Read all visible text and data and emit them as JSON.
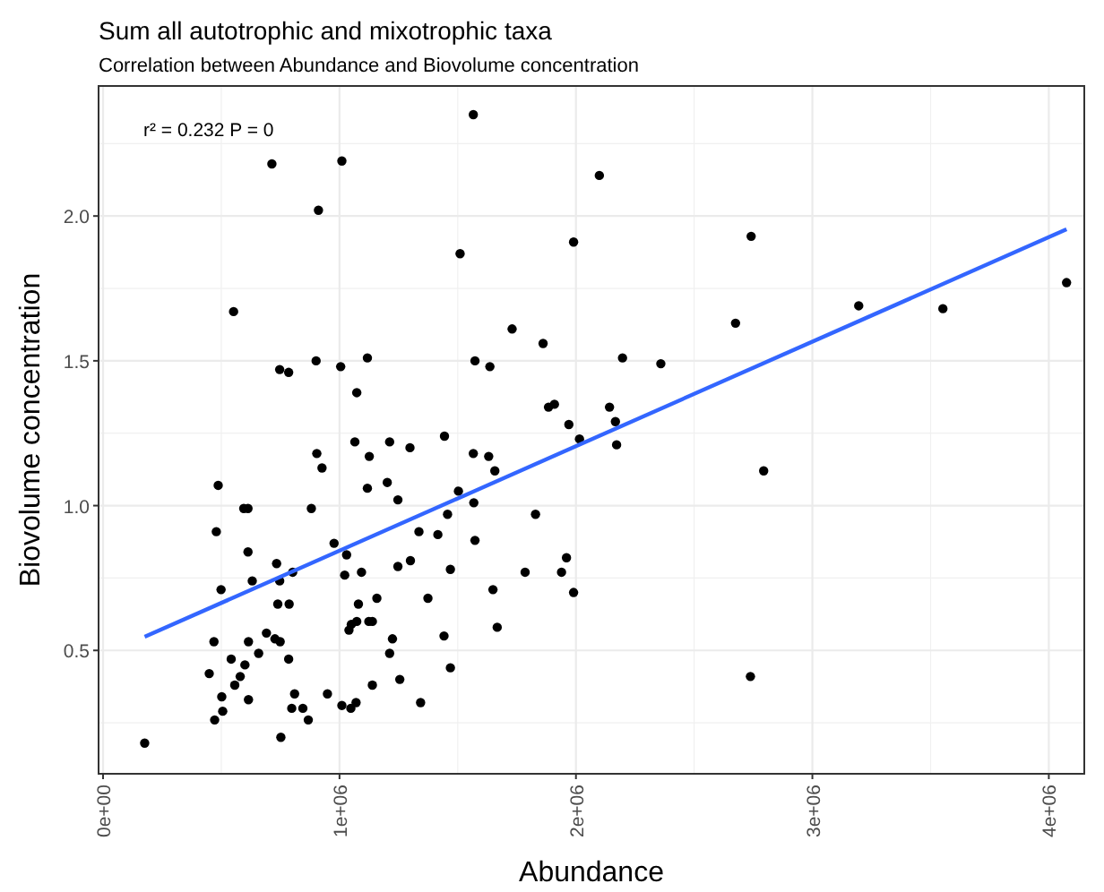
{
  "chart_data": {
    "type": "scatter",
    "title": "Sum all autotrophic and mixotrophic taxa",
    "subtitle": "Correlation between Abundance and Biovolume concentration",
    "xlabel": "Abundance",
    "ylabel": "Biovolume concentration",
    "annotations": [
      "r² = 0.232  P = 0"
    ],
    "xlim": [
      -19000,
      4150000
    ],
    "ylim": [
      0.074,
      2.449
    ],
    "xticks": [
      {
        "value": 0,
        "label": "0e+00"
      },
      {
        "value": 1000000,
        "label": "1e+06"
      },
      {
        "value": 2000000,
        "label": "2e+06"
      },
      {
        "value": 3000000,
        "label": "3e+06"
      },
      {
        "value": 4000000,
        "label": "4e+06"
      }
    ],
    "yticks": [
      0.5,
      {
        "value": 1,
        "label": "1.0"
      },
      1.5,
      {
        "value": 2,
        "label": "2.0"
      }
    ],
    "grid": true,
    "marker": "circle",
    "series": [
      {
        "color": "#000000",
        "x": [
          1566000,
          714000,
          1010000,
          911000,
          1510000,
          1990000,
          552000,
          1730000,
          1861000,
          747000,
          785000,
          901000,
          1005000,
          1118000,
          1573000,
          1636000,
          1073000,
          1884000,
          1909000,
          1970000,
          1065000,
          1212000,
          1298000,
          1444000,
          2015000,
          904000,
          926000,
          1126000,
          1566000,
          1631000,
          1657000,
          487000,
          1118000,
          1202000,
          1247000,
          1503000,
          595000,
          613000,
          881000,
          1568000,
          1457000,
          1829000,
          479000,
          977000,
          1336000,
          1416000,
          1573000,
          613000,
          1030000,
          734000,
          802000,
          1022000,
          1093000,
          1247000,
          1300000,
          1469000,
          1785000,
          1939000,
          1960000,
          1990000,
          631000,
          747000,
          499000,
          739000,
          787000,
          1080000,
          1158000,
          1374000,
          1649000,
          1667000,
          1050000,
          1073000,
          1040000,
          1124000,
          1139000,
          691000,
          727000,
          749000,
          469000,
          615000,
          1224000,
          1442000,
          658000,
          542000,
          785000,
          1212000,
          600000,
          1469000,
          449000,
          580000,
          557000,
          1139000,
          1255000,
          810000,
          949000,
          502000,
          615000,
          1010000,
          1070000,
          1048000,
          1343000,
          506000,
          798000,
          845000,
          472000,
          868000,
          752000,
          176000,
          2099000,
          2741000,
          3196000,
          3552000,
          4075000,
          2675000,
          2197000,
          2359000,
          2142000,
          2167000,
          2172000,
          2794000,
          2738000
        ],
        "values": [
          2.35,
          2.18,
          2.19,
          2.02,
          1.87,
          1.91,
          1.67,
          1.61,
          1.56,
          1.47,
          1.46,
          1.5,
          1.48,
          1.51,
          1.5,
          1.48,
          1.39,
          1.34,
          1.35,
          1.28,
          1.22,
          1.22,
          1.2,
          1.24,
          1.23,
          1.18,
          1.13,
          1.17,
          1.18,
          1.17,
          1.12,
          1.07,
          1.06,
          1.08,
          1.02,
          1.05,
          0.99,
          0.99,
          0.99,
          1.01,
          0.97,
          0.97,
          0.91,
          0.87,
          0.91,
          0.9,
          0.88,
          0.84,
          0.83,
          0.8,
          0.77,
          0.76,
          0.77,
          0.79,
          0.81,
          0.78,
          0.77,
          0.77,
          0.82,
          0.7,
          0.74,
          0.74,
          0.71,
          0.66,
          0.66,
          0.66,
          0.68,
          0.68,
          0.71,
          0.58,
          0.59,
          0.6,
          0.57,
          0.6,
          0.6,
          0.56,
          0.54,
          0.53,
          0.53,
          0.53,
          0.54,
          0.55,
          0.49,
          0.47,
          0.47,
          0.49,
          0.45,
          0.44,
          0.42,
          0.41,
          0.38,
          0.38,
          0.4,
          0.35,
          0.35,
          0.34,
          0.33,
          0.31,
          0.32,
          0.3,
          0.32,
          0.29,
          0.3,
          0.3,
          0.26,
          0.26,
          0.2,
          0.18,
          2.14,
          1.93,
          1.69,
          1.68,
          1.77,
          1.63,
          1.51,
          1.49,
          1.34,
          1.29,
          1.21,
          1.12,
          0.41
        ]
      },
      {
        "type": "line",
        "color": "#3366ff",
        "marker": "none",
        "x": [
          176000,
          4075000
        ],
        "values": [
          0.547,
          1.954
        ]
      }
    ]
  }
}
